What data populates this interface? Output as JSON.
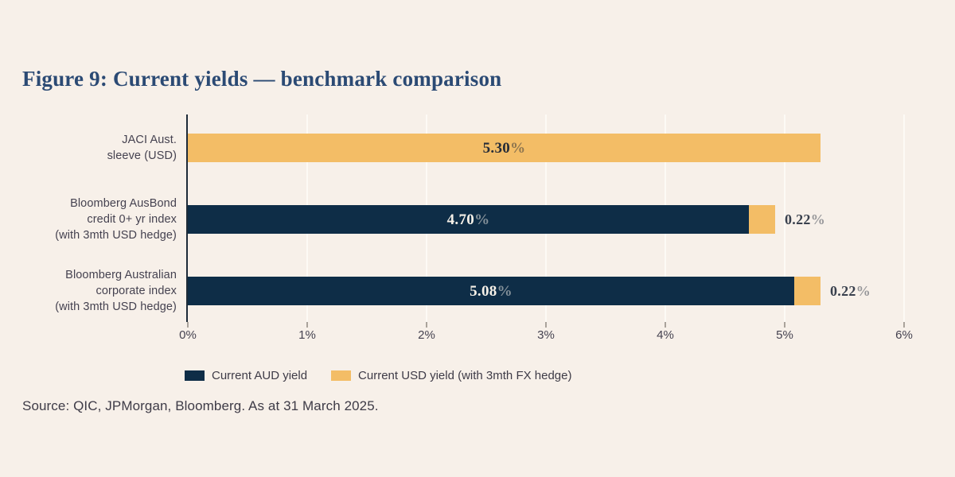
{
  "page": {
    "background": "#f7f0e9"
  },
  "title": {
    "text": "Figure 9: Current yields — benchmark comparison",
    "color": "#2b4a74"
  },
  "chart_data": {
    "type": "bar",
    "orientation": "horizontal",
    "stacked": true,
    "grid": "vertical",
    "xlim": [
      0,
      6
    ],
    "xtick_values": [
      0,
      1,
      2,
      3,
      4,
      5,
      6
    ],
    "xtick_labels": [
      "0%",
      "1%",
      "2%",
      "3%",
      "4%",
      "5%",
      "6%"
    ],
    "categories": [
      [
        "JACI Aust.",
        "sleeve (USD)"
      ],
      [
        "Bloomberg AusBond",
        "credit 0+ yr index",
        "(with 3mth USD hedge)"
      ],
      [
        "Bloomberg Australian",
        "corporate index",
        "(with 3mth USD hedge)"
      ]
    ],
    "series": [
      {
        "name": "Current AUD yield",
        "color": "#0e2d47",
        "label_color": "#f6f1e8",
        "values": [
          null,
          4.7,
          5.08
        ],
        "data_labels": [
          null,
          "4.70%",
          "5.08%"
        ]
      },
      {
        "name": "Current USD yield (with 3mth FX hedge)",
        "color": "#f3bd66",
        "label_color": "#272d38",
        "values": [
          5.3,
          0.22,
          0.22
        ],
        "data_labels": [
          "5.30%",
          "0.22%",
          "0.22%"
        ]
      }
    ],
    "outside_label_color": "#39404d"
  },
  "legend": {
    "items": [
      {
        "label": "Current AUD yield",
        "color": "#0e2d47"
      },
      {
        "label": "Current USD yield (with 3mth FX hedge)",
        "color": "#f3bd66"
      }
    ]
  },
  "source": {
    "text": "Source: QIC, JPMorgan, Bloomberg. As at 31 March 2025."
  }
}
